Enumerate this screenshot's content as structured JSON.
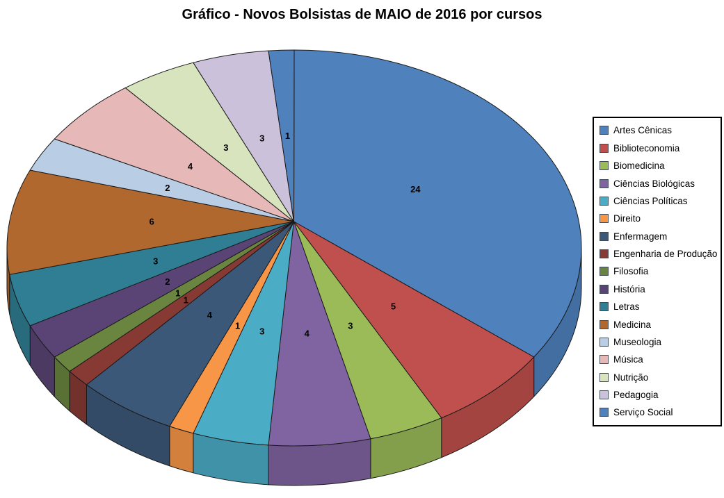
{
  "title": "Gráfico - Novos Bolsistas de MAIO de 2016 por cursos",
  "chart_data": {
    "type": "pie",
    "style": "3d-pie",
    "title": "Gráfico - Novos Bolsistas de MAIO de 2016 por cursos",
    "total": 70,
    "start_angle_deg": 0,
    "direction": "clockwise",
    "legend_position": "right",
    "data_labels_shown": "value",
    "categories": [
      "Artes Cênicas",
      "Biblioteconomia",
      "Biomedicina",
      "Ciências Biológicas",
      "Ciências Políticas",
      "Direito",
      "Enfermagem",
      "Engenharia de Produção",
      "Filosofia",
      "História",
      "Letras",
      "Medicina",
      "Museologia",
      "Música",
      "Nutrição",
      "Pedagogia",
      "Serviço Social"
    ],
    "values": [
      24,
      5,
      3,
      4,
      3,
      1,
      4,
      1,
      1,
      2,
      3,
      6,
      2,
      4,
      3,
      3,
      1
    ],
    "colors": [
      "#4F81BD",
      "#C0504D",
      "#9BBB59",
      "#8064A2",
      "#4BACC6",
      "#F79646",
      "#3C5878",
      "#873A34",
      "#6A8540",
      "#5A4475",
      "#2F7E93",
      "#B0682F",
      "#B9CDE5",
      "#E6B9B8",
      "#D7E4BD",
      "#CCC1DA",
      "#4F81BD"
    ],
    "background_color": "#FFFFFF",
    "slice_border_color": "#1A1A1A"
  }
}
